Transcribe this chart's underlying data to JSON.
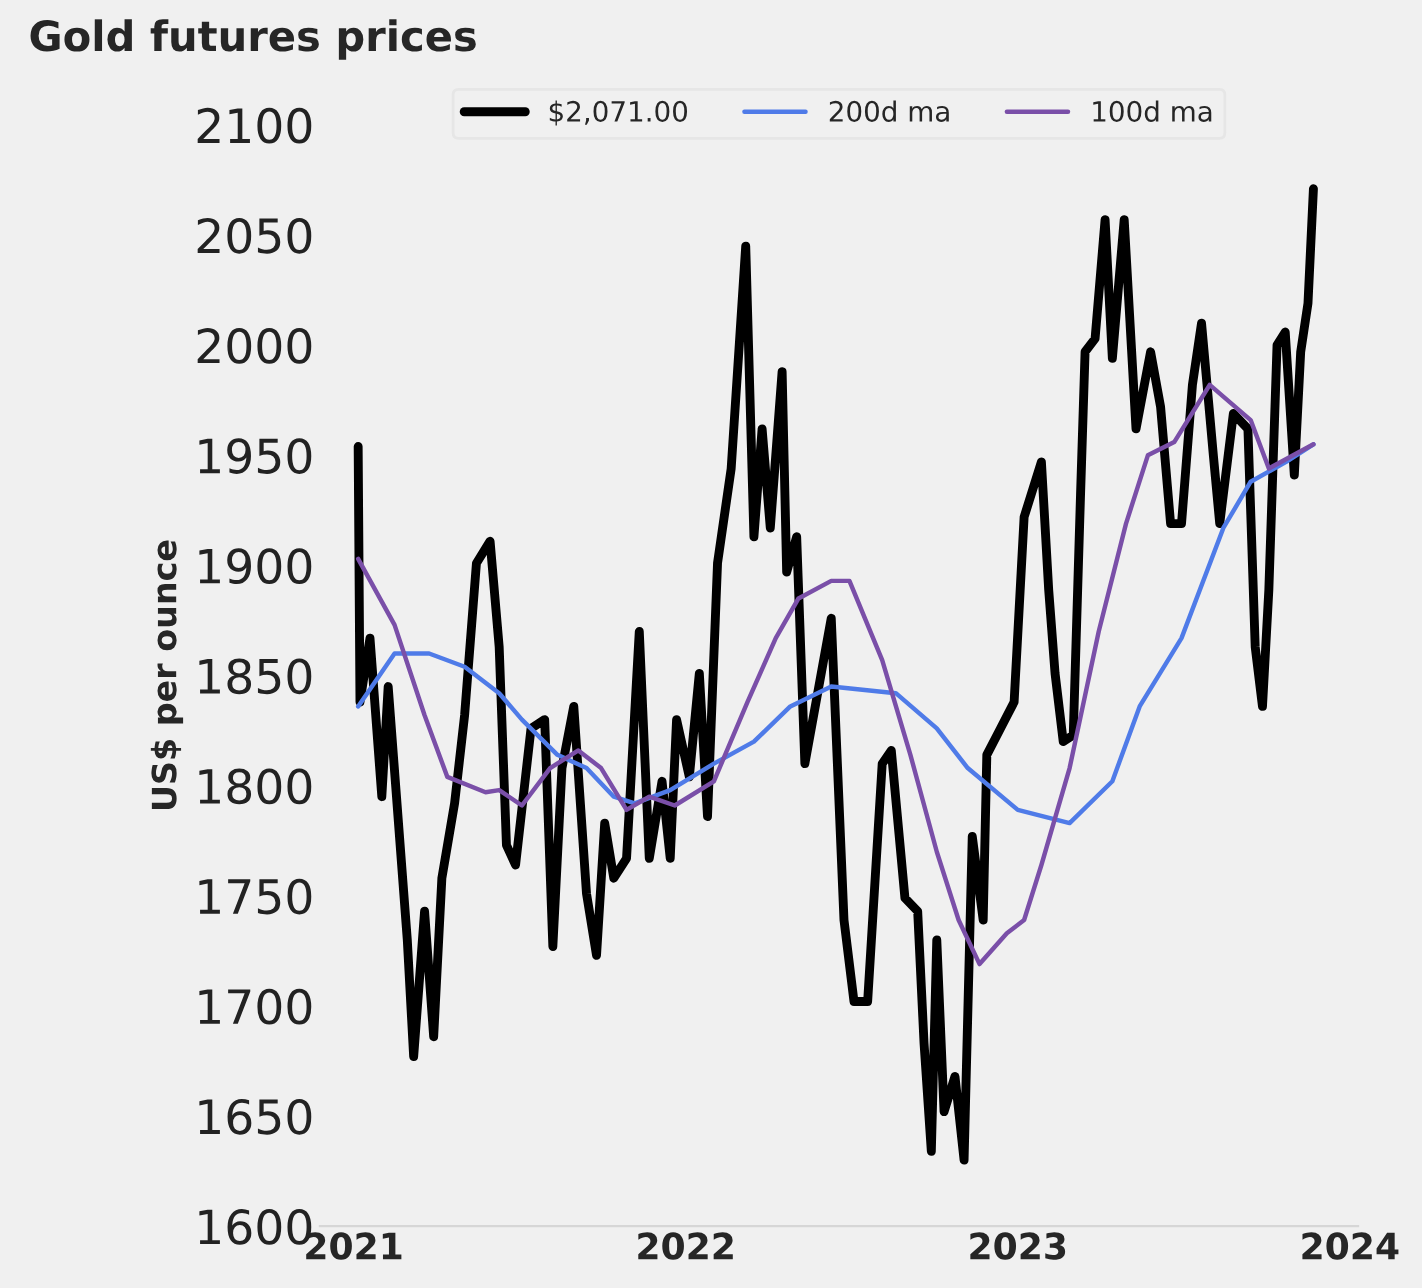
{
  "chart_data": {
    "type": "line",
    "title": "Gold futures prices",
    "ylabel": "US$ per ounce",
    "xlim": [
      "2020-11-25",
      "2024-01-10"
    ],
    "xticks": [
      "2021",
      "2022",
      "2023",
      "2024"
    ],
    "ylim": [
      1600,
      2100
    ],
    "yticks": [
      1600,
      1650,
      1700,
      1750,
      1800,
      1850,
      1900,
      1950,
      2000,
      2050,
      2100
    ],
    "grid": false,
    "legend": "top",
    "line_style": "solid",
    "marker": "none",
    "series": [
      {
        "name": "$2,071.00",
        "color": "#000000",
        "x": [
          "2021-01-06",
          "2021-01-08",
          "2021-01-19",
          "2021-02-01",
          "2021-02-08",
          "2021-03-01",
          "2021-03-08",
          "2021-03-20",
          "2021-03-30",
          "2021-04-08",
          "2021-04-22",
          "2021-05-03",
          "2021-05-16",
          "2021-05-31",
          "2021-06-10",
          "2021-06-18",
          "2021-06-28",
          "2021-07-15",
          "2021-07-30",
          "2021-08-08",
          "2021-08-18",
          "2021-08-31",
          "2021-09-14",
          "2021-09-25",
          "2021-10-04",
          "2021-10-14",
          "2021-10-28",
          "2021-11-11",
          "2021-11-22",
          "2021-12-06",
          "2021-12-15",
          "2021-12-22",
          "2022-01-05",
          "2022-01-16",
          "2022-01-25",
          "2022-02-05",
          "2022-02-20",
          "2022-03-08",
          "2022-03-17",
          "2022-03-26",
          "2022-04-04",
          "2022-04-17",
          "2022-04-22",
          "2022-05-03",
          "2022-05-12",
          "2022-06-10",
          "2022-06-24",
          "2022-07-05",
          "2022-07-20",
          "2022-08-05",
          "2022-08-15",
          "2022-08-30",
          "2022-09-13",
          "2022-09-20",
          "2022-09-28",
          "2022-10-04",
          "2022-10-12",
          "2022-10-24",
          "2022-11-03",
          "2022-11-12",
          "2022-11-24",
          "2022-11-28",
          "2022-12-13",
          "2022-12-28",
          "2023-01-08",
          "2023-01-27",
          "2023-02-04",
          "2023-02-11",
          "2023-02-20",
          "2023-03-03",
          "2023-03-11",
          "2023-03-16",
          "2023-03-27",
          "2023-04-07",
          "2023-04-15",
          "2023-04-28",
          "2023-05-11",
          "2023-05-27",
          "2023-06-07",
          "2023-06-18",
          "2023-06-30",
          "2023-07-12",
          "2023-07-22",
          "2023-08-04",
          "2023-08-11",
          "2023-08-26",
          "2023-09-11",
          "2023-09-19",
          "2023-09-27",
          "2023-10-04",
          "2023-10-13",
          "2023-10-22",
          "2023-11-01",
          "2023-11-08",
          "2023-11-16",
          "2023-11-22"
        ],
        "values": [
          1954,
          1838,
          1867,
          1795,
          1845,
          1730,
          1677,
          1743,
          1686,
          1758,
          1792,
          1832,
          1901,
          1911,
          1863,
          1773,
          1764,
          1826,
          1830,
          1727,
          1808,
          1836,
          1751,
          1723,
          1783,
          1758,
          1767,
          1870,
          1767,
          1802,
          1767,
          1830,
          1804,
          1851,
          1786,
          1901,
          1944,
          2045,
          1913,
          1962,
          1917,
          1988,
          1897,
          1913,
          1810,
          1876,
          1739,
          1702,
          1702,
          1810,
          1816,
          1749,
          1743,
          1683,
          1634,
          1730,
          1652,
          1668,
          1630,
          1777,
          1739,
          1814,
          1826,
          1838,
          1922,
          1947,
          1889,
          1851,
          1820,
          1823,
          1932,
          1997,
          2003,
          2057,
          1994,
          2057,
          1962,
          1997,
          1972,
          1919,
          1919,
          1982,
          2010,
          1950,
          1919,
          1969,
          1962,
          1863,
          1836,
          1889,
          2000,
          2006,
          1941,
          1997,
          2019,
          2071
        ]
      },
      {
        "name": "200d ma",
        "color": "#4f7be8",
        "x": [
          "2021-01-06",
          "2021-02-15",
          "2021-03-25",
          "2021-05-03",
          "2021-06-10",
          "2021-07-05",
          "2021-08-13",
          "2021-09-14",
          "2021-10-14",
          "2021-11-06",
          "2021-12-15",
          "2022-02-01",
          "2022-03-17",
          "2022-04-26",
          "2022-06-10",
          "2022-08-20",
          "2022-10-04",
          "2022-11-07",
          "2023-01-01",
          "2023-02-27",
          "2023-04-15",
          "2023-05-15",
          "2023-06-30",
          "2023-08-15",
          "2023-09-14",
          "2023-10-23",
          "2023-11-22"
        ],
        "values": [
          1836,
          1860,
          1860,
          1854,
          1842,
          1830,
          1814,
          1808,
          1795,
          1792,
          1798,
          1810,
          1820,
          1836,
          1845,
          1842,
          1826,
          1808,
          1789,
          1783,
          1802,
          1836,
          1867,
          1917,
          1938,
          1947,
          1955
        ]
      },
      {
        "name": "100d ma",
        "color": "#7a4fa8",
        "x": [
          "2021-01-06",
          "2021-02-15",
          "2021-03-20",
          "2021-04-14",
          "2021-05-26",
          "2021-06-10",
          "2021-07-05",
          "2021-08-05",
          "2021-09-05",
          "2021-09-30",
          "2021-10-28",
          "2021-11-22",
          "2021-12-20",
          "2022-02-01",
          "2022-03-10",
          "2022-04-10",
          "2022-05-05",
          "2022-06-10",
          "2022-06-30",
          "2022-08-05",
          "2022-09-05",
          "2022-10-04",
          "2022-10-28",
          "2022-11-20",
          "2022-12-20",
          "2023-01-08",
          "2023-01-27",
          "2023-02-27",
          "2023-03-31",
          "2023-04-30",
          "2023-05-24",
          "2023-06-22",
          "2023-07-31",
          "2023-09-14",
          "2023-10-04",
          "2023-11-22"
        ],
        "values": [
          1903,
          1873,
          1832,
          1804,
          1797,
          1798,
          1791,
          1808,
          1816,
          1808,
          1789,
          1795,
          1791,
          1802,
          1838,
          1867,
          1885,
          1893,
          1893,
          1857,
          1814,
          1770,
          1739,
          1719,
          1733,
          1739,
          1764,
          1808,
          1870,
          1919,
          1950,
          1956,
          1982,
          1966,
          1944,
          1955
        ]
      }
    ]
  }
}
